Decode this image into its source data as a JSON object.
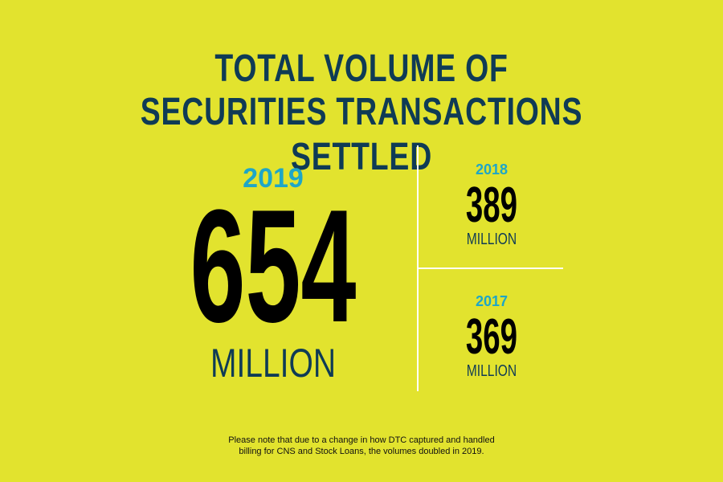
{
  "title": {
    "line1": "TOTAL VOLUME OF",
    "line2": "SECURITIES TRANSACTIONS SETTLED"
  },
  "main_stat": {
    "year": "2019",
    "value": "654",
    "unit": "MILLION"
  },
  "side_stats": [
    {
      "year": "2018",
      "value": "389",
      "unit": "MILLION"
    },
    {
      "year": "2017",
      "value": "369",
      "unit": "MILLION"
    }
  ],
  "footnote": {
    "line1": "Please note that due to a change in how DTC captured and handled",
    "line2": "billing for CNS and Stock Loans, the volumes doubled in 2019."
  },
  "colors": {
    "background": "#e2e32e",
    "title": "#0f3b55",
    "year_accent": "#1ea6c7",
    "value": "#000000",
    "divider": "#ffffff"
  }
}
